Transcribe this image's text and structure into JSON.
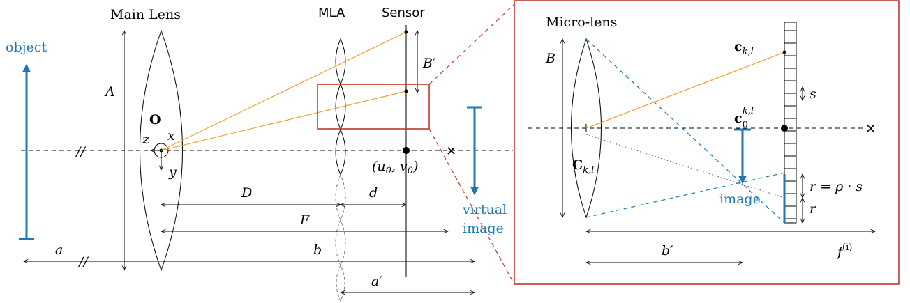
{
  "left": {
    "main_lens": "Main Lens",
    "mla": "MLA",
    "sensor": "Sensor",
    "object": "object",
    "virtual_image": [
      "virtual",
      "image"
    ],
    "A": "A",
    "B_prime": "B′",
    "O": "O",
    "x": "x",
    "y": "y",
    "z": "z",
    "D": "D",
    "d": "d",
    "F": "F",
    "a": "a",
    "b": "b",
    "a_prime": "a′",
    "principal_point": "(u0, v0)"
  },
  "inset": {
    "micro_lens": "Micro-lens",
    "B": "B",
    "c_kl": "c",
    "c_kl_sub": "k,l",
    "c0": "c",
    "c0_sub": "0",
    "c0_sup": "k,l",
    "C_kl": "C",
    "C_kl_sub": "k,l",
    "s": "s",
    "r_eq": "r = ρ · s",
    "r": "r",
    "image": "image",
    "b_prime": "b′",
    "f": "f",
    "f_sup": "(i)"
  },
  "colors": {
    "ray": "#f0a030",
    "image": "#1f77b4",
    "highlight": "#c0392b"
  }
}
